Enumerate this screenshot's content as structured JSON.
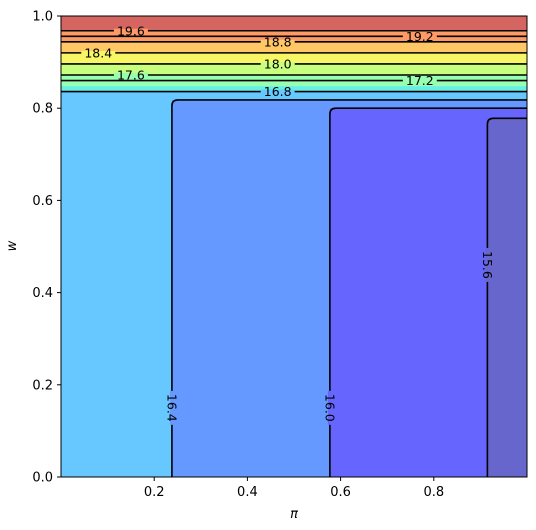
{
  "chart_data": {
    "type": "contour",
    "xlabel": "π",
    "ylabel": "w",
    "xlim": [
      0.0,
      1.0
    ],
    "ylim": [
      0.0,
      1.0
    ],
    "xticks": [
      0.2,
      0.4,
      0.6,
      0.8
    ],
    "yticks": [
      0.0,
      0.2,
      0.4,
      0.6,
      0.8,
      1.0
    ],
    "xtick_labels": [
      "0.2",
      "0.4",
      "0.6",
      "0.8"
    ],
    "ytick_labels": [
      "0.0",
      "0.2",
      "0.4",
      "0.6",
      "0.8",
      "1.0"
    ],
    "grid": false,
    "colormap": "jet (alpha 0.6)",
    "filled_regions": [
      {
        "type": "band",
        "y0": 0.968,
        "y1": 1.0,
        "color": "#d56561"
      },
      {
        "type": "band",
        "y0": 0.944,
        "y1": 0.968,
        "color": "#ff9a66"
      },
      {
        "type": "band",
        "y0": 0.92,
        "y1": 0.944,
        "color": "#ffc766"
      },
      {
        "type": "band",
        "y0": 0.896,
        "y1": 0.92,
        "color": "#f7f766"
      },
      {
        "type": "band",
        "y0": 0.872,
        "y1": 0.896,
        "color": "#c9ff7e"
      },
      {
        "type": "band",
        "y0": 0.848,
        "y1": 0.872,
        "color": "#96ffb0"
      },
      {
        "type": "band",
        "y0": 0.836,
        "y1": 0.848,
        "color": "#66f0e3"
      },
      {
        "type": "rect",
        "x0": 0.0,
        "x1": 1.0,
        "y0": 0.0,
        "y1": 0.836,
        "color": "#66c8ff"
      },
      {
        "type": "rect",
        "x0": 0.238,
        "x1": 1.0,
        "y0": 0.0,
        "y1": 0.818,
        "color": "#6699ff"
      },
      {
        "type": "rect",
        "x0": 0.577,
        "x1": 1.0,
        "y0": 0.0,
        "y1": 0.8,
        "color": "#6666ff"
      },
      {
        "type": "rect",
        "x0": 0.915,
        "x1": 1.0,
        "y0": 0.0,
        "y1": 0.778,
        "color": "#6666cc"
      }
    ],
    "contours": [
      {
        "level": "19.6",
        "kind": "h",
        "y": 0.968,
        "label_x": 0.15
      },
      {
        "level": "19.2",
        "kind": "h",
        "y": 0.956,
        "label_x": 0.77
      },
      {
        "level": "18.8",
        "kind": "h",
        "y": 0.944,
        "label_x": 0.465
      },
      {
        "level": "18.4",
        "kind": "h",
        "y": 0.92,
        "label_x": 0.08
      },
      {
        "level": "18.0",
        "kind": "h",
        "y": 0.896,
        "label_x": 0.465
      },
      {
        "level": "17.6",
        "kind": "h",
        "y": 0.872,
        "label_x": 0.15
      },
      {
        "level": "17.2",
        "kind": "h",
        "y": 0.86,
        "label_x": 0.77
      },
      {
        "level": "16.8",
        "kind": "h",
        "y": 0.836,
        "label_x": 0.465
      },
      {
        "level": "16.4",
        "kind": "step",
        "x": 0.238,
        "top": 0.818,
        "label_y": 0.15
      },
      {
        "level": "16.0",
        "kind": "step",
        "x": 0.577,
        "top": 0.8,
        "label_y": 0.15
      },
      {
        "level": "15.6",
        "kind": "step",
        "x": 0.915,
        "top": 0.778,
        "label_y": 0.46
      }
    ]
  }
}
